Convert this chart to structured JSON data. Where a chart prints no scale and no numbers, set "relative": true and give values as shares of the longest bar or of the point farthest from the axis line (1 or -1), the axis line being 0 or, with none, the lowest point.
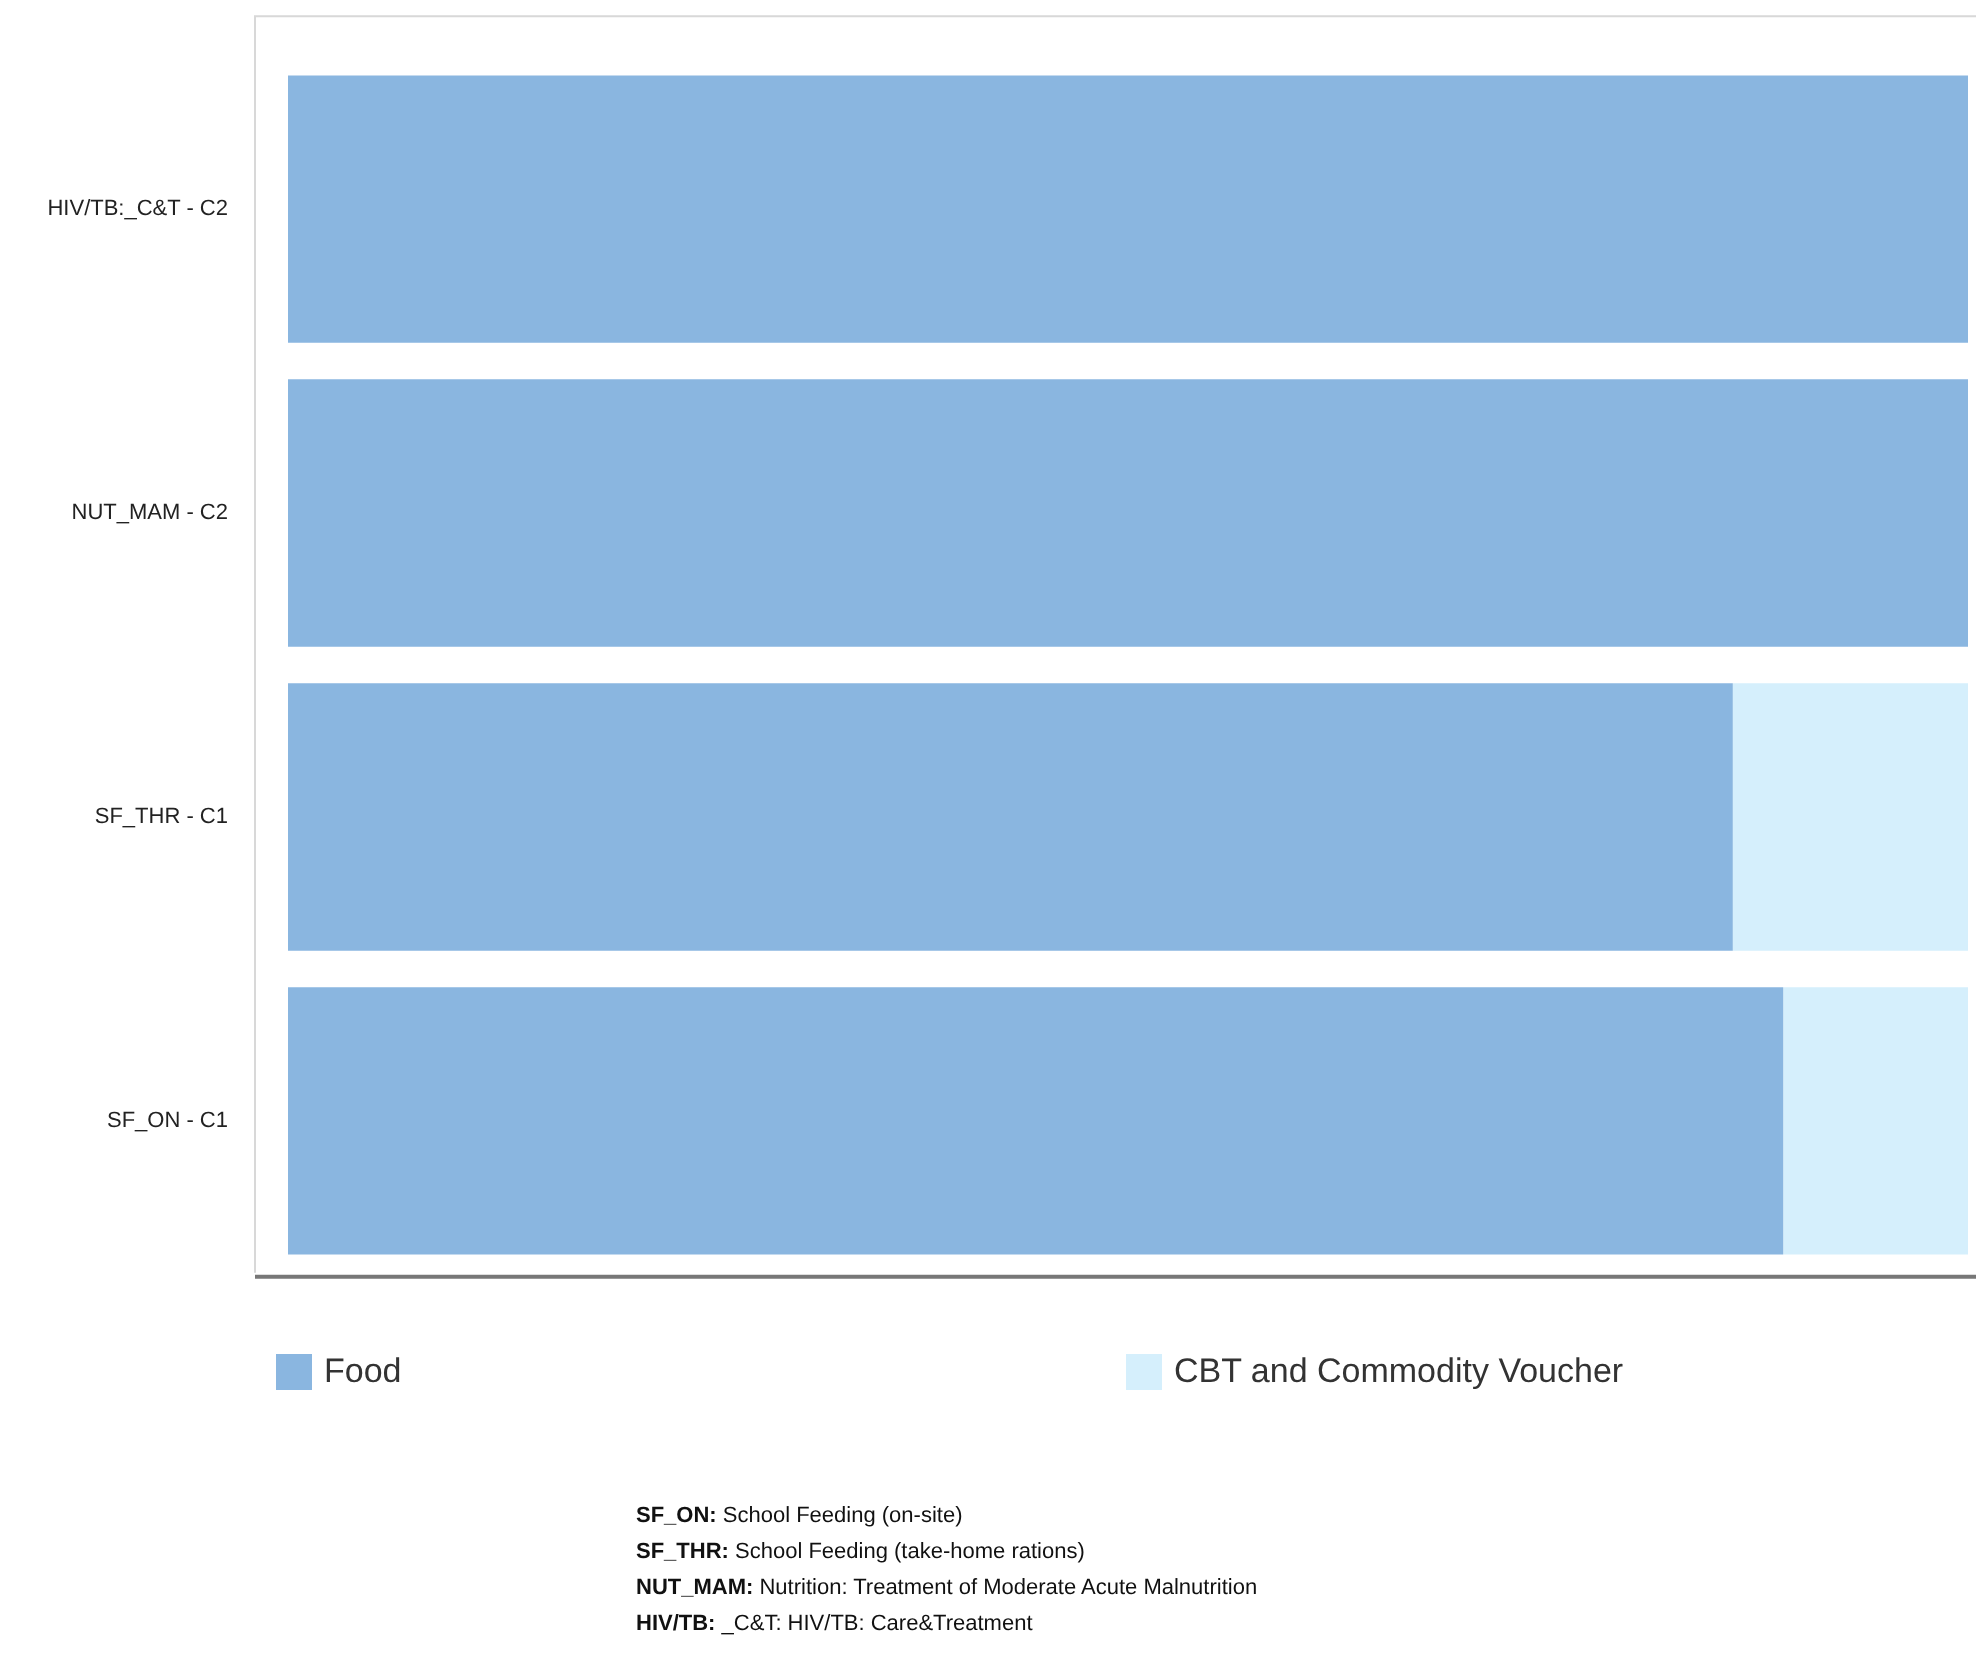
{
  "chart_data": {
    "type": "bar",
    "orientation": "horizontal",
    "stacked": true,
    "relative": true,
    "categories": [
      "HIV/TB:_C&T - C2",
      "NUT_MAM - C2",
      "SF_THR - C1",
      "SF_ON - C1"
    ],
    "series": [
      {
        "name": "Food",
        "color": "#8ab6e0",
        "values": [
          1,
          1,
          0.86,
          0.89
        ]
      },
      {
        "name": "CBT and Commodity Voucher",
        "color": "#d5effc",
        "values": [
          0,
          0,
          0.14,
          0.11
        ]
      }
    ],
    "legend": "bottom",
    "annotations": [
      "SF_ON: School Feeding (on-site)",
      "SF_THR: School Feeding (take-home rations)",
      "NUT_MAM: Nutrition: Treatment of Moderate Acute Malnutrition",
      "HIV/TB: _C&T: HIV/TB: Care&Treatment"
    ]
  }
}
